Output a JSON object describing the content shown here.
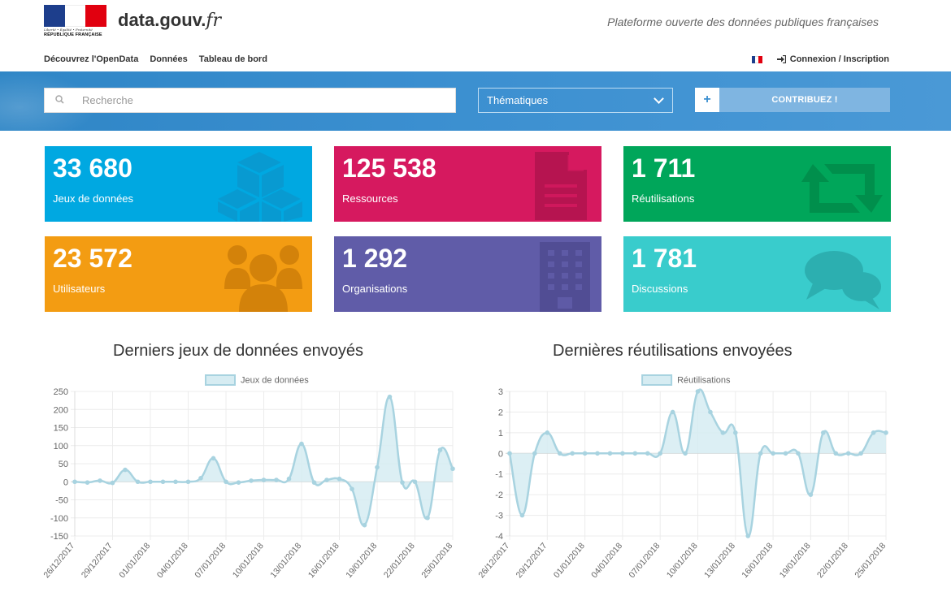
{
  "header": {
    "rf_motto": "Liberté • Égalité • Fraternité",
    "rf_label": "RÉPUBLIQUE FRANÇAISE",
    "brand_main": "data.gouv.",
    "brand_suffix": "fr",
    "tagline": "Plateforme ouverte des données publiques françaises",
    "nav": [
      "Découvrez l'OpenData",
      "Données",
      "Tableau de bord"
    ],
    "login": "Connexion / Inscription"
  },
  "search": {
    "placeholder": "Recherche",
    "icon": "search-icon"
  },
  "thematiques": {
    "selected": "Thématiques"
  },
  "contribute": {
    "plus": "+",
    "label": "CONTRIBUEZ !"
  },
  "tiles": [
    {
      "value": "33 680",
      "label": "Jeux de données",
      "color": "#00a8e1",
      "icon": "cubes-icon"
    },
    {
      "value": "125 538",
      "label": "Ressources",
      "color": "#d6195f",
      "icon": "document-icon"
    },
    {
      "value": "1 711",
      "label": "Réutilisations",
      "color": "#00a65a",
      "icon": "retweet-icon"
    },
    {
      "value": "23 572",
      "label": "Utilisateurs",
      "color": "#f39c12",
      "icon": "users-icon"
    },
    {
      "value": "1 292",
      "label": "Organisations",
      "color": "#605ca8",
      "icon": "building-icon"
    },
    {
      "value": "1 781",
      "label": "Discussions",
      "color": "#39cccc",
      "icon": "chat-icon"
    }
  ],
  "colors": {
    "chart_line": "#a8d3e0",
    "chart_fill": "#d6ecf2",
    "banner": "#3b8fd0"
  },
  "chart_data": [
    {
      "type": "area",
      "title": "Derniers jeux de données envoyés",
      "series": [
        {
          "name": "Jeux de données",
          "values": [
            0,
            -2,
            3,
            -3,
            33,
            0,
            0,
            0,
            0,
            0,
            10,
            65,
            0,
            -2,
            3,
            5,
            5,
            8,
            105,
            -2,
            5,
            8,
            -20,
            -120,
            40,
            235,
            -2,
            0,
            -100,
            88,
            36
          ]
        }
      ],
      "x": [
        "26/12/2017",
        "27/12/2017",
        "28/12/2017",
        "29/12/2017",
        "30/12/2017",
        "31/12/2017",
        "01/01/2018",
        "02/01/2018",
        "03/01/2018",
        "04/01/2018",
        "05/01/2018",
        "06/01/2018",
        "07/01/2018",
        "08/01/2018",
        "09/01/2018",
        "10/01/2018",
        "11/01/2018",
        "12/01/2018",
        "13/01/2018",
        "14/01/2018",
        "15/01/2018",
        "16/01/2018",
        "17/01/2018",
        "18/01/2018",
        "19/01/2018",
        "20/01/2018",
        "21/01/2018",
        "22/01/2018",
        "23/01/2018",
        "24/01/2018",
        "25/01/2018"
      ],
      "x_tick_labels": [
        "26/12/2017",
        "29/12/2017",
        "01/01/2018",
        "04/01/2018",
        "07/01/2018",
        "10/01/2018",
        "13/01/2018",
        "16/01/2018",
        "19/01/2018",
        "22/01/2018",
        "25/01/2018"
      ],
      "y_ticks": [
        250,
        200,
        150,
        100,
        50,
        0,
        -50,
        -100,
        -150
      ],
      "ylim": [
        -150,
        250
      ],
      "grid": true,
      "legend": "top"
    },
    {
      "type": "area",
      "title": "Dernières réutilisations envoyées",
      "series": [
        {
          "name": "Réutilisations",
          "values": [
            0,
            -3,
            0,
            1,
            0,
            0,
            0,
            0,
            0,
            0,
            0,
            0,
            0,
            2,
            0,
            3,
            2,
            1,
            1,
            -4,
            0,
            0,
            0,
            0,
            -2,
            1,
            0,
            0,
            0,
            1,
            1
          ]
        }
      ],
      "x": [
        "26/12/2017",
        "27/12/2017",
        "28/12/2017",
        "29/12/2017",
        "30/12/2017",
        "31/12/2017",
        "01/01/2018",
        "02/01/2018",
        "03/01/2018",
        "04/01/2018",
        "05/01/2018",
        "06/01/2018",
        "07/01/2018",
        "08/01/2018",
        "09/01/2018",
        "10/01/2018",
        "11/01/2018",
        "12/01/2018",
        "13/01/2018",
        "14/01/2018",
        "15/01/2018",
        "16/01/2018",
        "17/01/2018",
        "18/01/2018",
        "19/01/2018",
        "20/01/2018",
        "21/01/2018",
        "22/01/2018",
        "23/01/2018",
        "24/01/2018",
        "25/01/2018"
      ],
      "x_tick_labels": [
        "26/12/2017",
        "29/12/2017",
        "01/01/2018",
        "04/01/2018",
        "07/01/2018",
        "10/01/2018",
        "13/01/2018",
        "16/01/2018",
        "19/01/2018",
        "22/01/2018",
        "25/01/2018"
      ],
      "y_ticks": [
        3,
        2,
        1,
        0,
        -1,
        -2,
        -3,
        -4
      ],
      "ylim": [
        -4,
        3
      ],
      "grid": true,
      "legend": "top"
    }
  ]
}
